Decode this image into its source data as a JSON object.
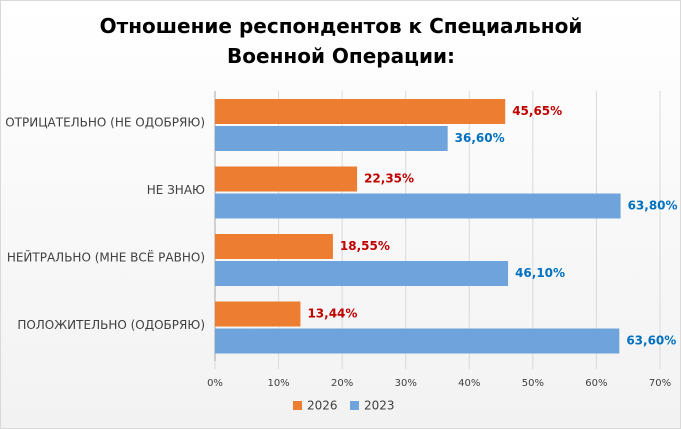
{
  "chart_data": {
    "type": "hbar",
    "title": "Отношение респондентов к Специальной Военной Операции:",
    "categories": [
      "ОТРИЦАТЕЛЬНО (НЕ ОДОБРЯЮ)",
      "НЕ ЗНАЮ",
      "НЕЙТРАЛЬНО (МНЕ ВСЁ РАВНО)",
      "ПОЛОЖИТЕЛЬНО (ОДОБРЯЮ)"
    ],
    "series": [
      {
        "name": "2026",
        "color": "#ed7d31",
        "label_color": "#c00000",
        "values": [
          45.65,
          22.35,
          18.55,
          13.44
        ],
        "value_labels": [
          "45,65%",
          "22,35%",
          "18,55%",
          "13,44%"
        ]
      },
      {
        "name": "2023",
        "color": "#6fa3dc",
        "label_color": "#0070c0",
        "values": [
          36.6,
          63.8,
          46.1,
          63.6
        ],
        "value_labels": [
          "36,60%",
          "63,80%",
          "46,10%",
          "63,60%"
        ]
      }
    ],
    "xlim": [
      0,
      70
    ],
    "xticks": [
      {
        "value": 0,
        "label": "0%"
      },
      {
        "value": 10,
        "label": "10%"
      },
      {
        "value": 20,
        "label": "20%"
      },
      {
        "value": 30,
        "label": "30%"
      },
      {
        "value": 40,
        "label": "40%"
      },
      {
        "value": 50,
        "label": "50%"
      },
      {
        "value": 60,
        "label": "60%"
      },
      {
        "value": 70,
        "label": "70%"
      }
    ],
    "grid": true
  }
}
